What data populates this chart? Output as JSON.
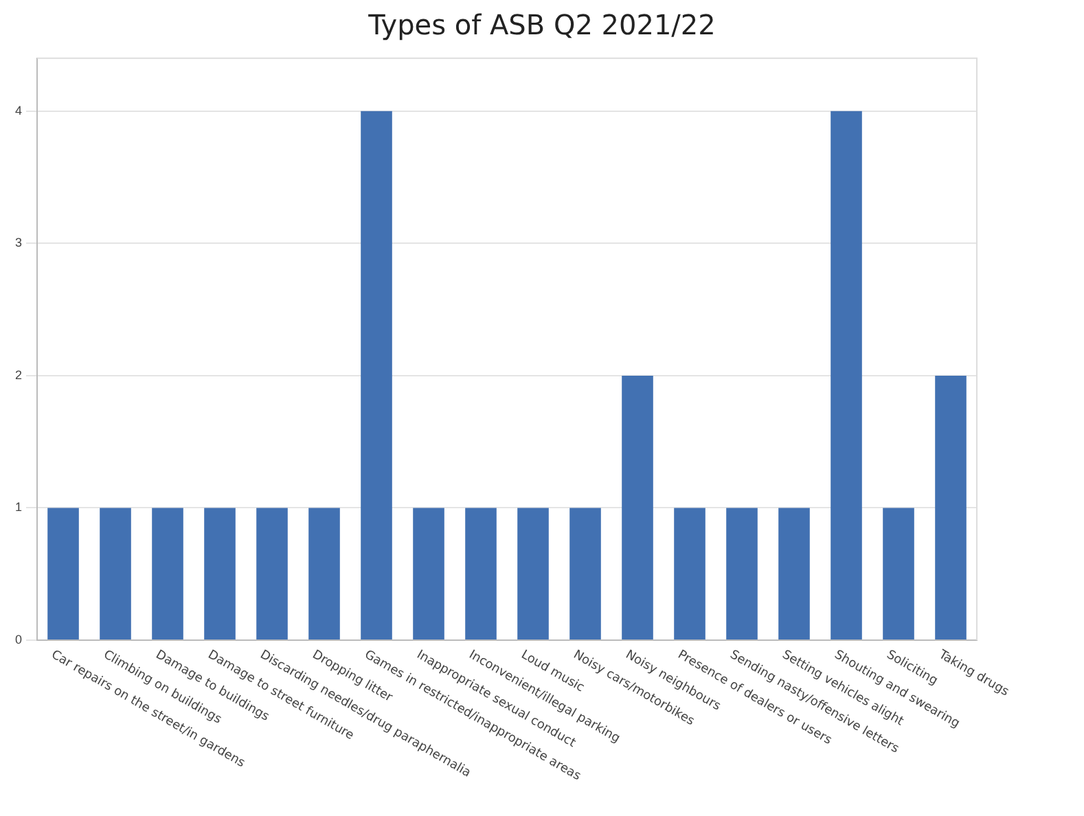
{
  "chart_data": {
    "type": "bar",
    "title": "Types of ASB Q2 2021/22",
    "categories": [
      "Car repairs on the street/in gardens",
      "Climbing on buildings",
      "Damage to buildings",
      "Damage to street furniture",
      "Discarding needles/drug paraphernalia",
      "Dropping litter",
      "Games in restricted/inappropriate areas",
      "Inappropriate sexual conduct",
      "Inconvenient/illegal parking",
      "Loud music",
      "Noisy cars/motorbikes",
      "Noisy neighbours",
      "Presence of dealers or users",
      "Sending nasty/offensive letters",
      "Setting vehicles alight",
      "Shouting and swearing",
      "Soliciting",
      "Taking drugs"
    ],
    "values": [
      1,
      1,
      1,
      1,
      1,
      1,
      4,
      1,
      1,
      1,
      1,
      2,
      1,
      1,
      1,
      4,
      1,
      2
    ],
    "color": "#4271b2",
    "ylim": [
      0,
      4.4
    ],
    "yticks": [
      0,
      1,
      2,
      3,
      4
    ],
    "grid": "y",
    "legend": false
  }
}
